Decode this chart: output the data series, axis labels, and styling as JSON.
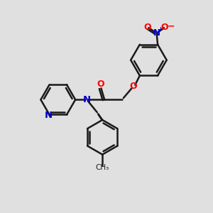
{
  "bg_color": "#e0e0e0",
  "bond_color": "#1a1a1a",
  "oxygen_color": "#ff0000",
  "nitrogen_color": "#0000cc",
  "bond_width": 1.8,
  "figsize": [
    3.0,
    3.0
  ],
  "dpi": 100,
  "xlim": [
    0,
    10
  ],
  "ylim": [
    0,
    10
  ]
}
